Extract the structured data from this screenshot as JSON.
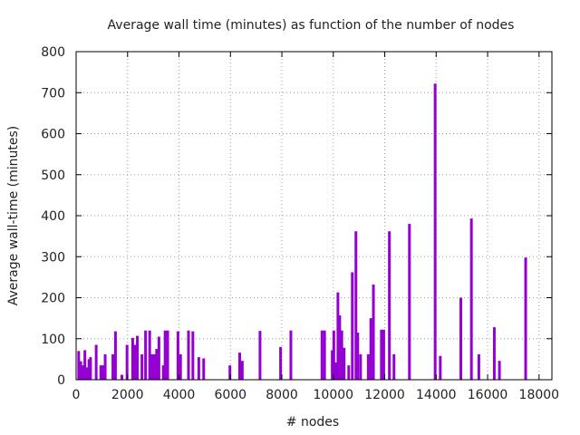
{
  "chart_data": {
    "type": "bar",
    "title": "Average wall time (minutes) as function of the number of nodes",
    "xlabel": "# nodes",
    "ylabel": "Average wall-time (minutes)",
    "xlim": [
      0,
      18500
    ],
    "ylim": [
      0,
      800
    ],
    "xticks": [
      0,
      2000,
      4000,
      6000,
      8000,
      10000,
      12000,
      14000,
      16000,
      18000
    ],
    "yticks": [
      0,
      100,
      200,
      300,
      400,
      500,
      600,
      700,
      800
    ],
    "grid": true,
    "bar_color": "#9400d3",
    "points": [
      {
        "x": 100,
        "y": 70
      },
      {
        "x": 180,
        "y": 45
      },
      {
        "x": 260,
        "y": 35
      },
      {
        "x": 340,
        "y": 72
      },
      {
        "x": 420,
        "y": 30
      },
      {
        "x": 500,
        "y": 50
      },
      {
        "x": 560,
        "y": 55
      },
      {
        "x": 780,
        "y": 85
      },
      {
        "x": 960,
        "y": 35
      },
      {
        "x": 1040,
        "y": 35
      },
      {
        "x": 1130,
        "y": 62
      },
      {
        "x": 1430,
        "y": 62
      },
      {
        "x": 1530,
        "y": 118
      },
      {
        "x": 1780,
        "y": 12
      },
      {
        "x": 1980,
        "y": 85
      },
      {
        "x": 2200,
        "y": 102
      },
      {
        "x": 2290,
        "y": 85
      },
      {
        "x": 2380,
        "y": 107
      },
      {
        "x": 2560,
        "y": 62
      },
      {
        "x": 2700,
        "y": 120
      },
      {
        "x": 2860,
        "y": 120
      },
      {
        "x": 2960,
        "y": 62
      },
      {
        "x": 3050,
        "y": 62
      },
      {
        "x": 3130,
        "y": 75
      },
      {
        "x": 3220,
        "y": 105
      },
      {
        "x": 3390,
        "y": 35
      },
      {
        "x": 3460,
        "y": 120
      },
      {
        "x": 3560,
        "y": 120
      },
      {
        "x": 3960,
        "y": 118
      },
      {
        "x": 4060,
        "y": 62
      },
      {
        "x": 4370,
        "y": 120
      },
      {
        "x": 4540,
        "y": 118
      },
      {
        "x": 4770,
        "y": 55
      },
      {
        "x": 4960,
        "y": 52
      },
      {
        "x": 5980,
        "y": 35
      },
      {
        "x": 6360,
        "y": 66
      },
      {
        "x": 6460,
        "y": 46
      },
      {
        "x": 7150,
        "y": 119
      },
      {
        "x": 7950,
        "y": 80
      },
      {
        "x": 8350,
        "y": 120
      },
      {
        "x": 9560,
        "y": 120
      },
      {
        "x": 9660,
        "y": 120
      },
      {
        "x": 9960,
        "y": 72
      },
      {
        "x": 10020,
        "y": 120
      },
      {
        "x": 10080,
        "y": 42
      },
      {
        "x": 10180,
        "y": 213
      },
      {
        "x": 10250,
        "y": 157
      },
      {
        "x": 10330,
        "y": 120
      },
      {
        "x": 10420,
        "y": 78
      },
      {
        "x": 10600,
        "y": 35
      },
      {
        "x": 10740,
        "y": 262
      },
      {
        "x": 10880,
        "y": 362
      },
      {
        "x": 10950,
        "y": 115
      },
      {
        "x": 11060,
        "y": 62
      },
      {
        "x": 11360,
        "y": 62
      },
      {
        "x": 11460,
        "y": 150
      },
      {
        "x": 11560,
        "y": 232
      },
      {
        "x": 11870,
        "y": 122
      },
      {
        "x": 11960,
        "y": 122
      },
      {
        "x": 12180,
        "y": 362
      },
      {
        "x": 12360,
        "y": 62
      },
      {
        "x": 12960,
        "y": 380
      },
      {
        "x": 13960,
        "y": 722
      },
      {
        "x": 14160,
        "y": 58
      },
      {
        "x": 14960,
        "y": 200
      },
      {
        "x": 15370,
        "y": 393
      },
      {
        "x": 15660,
        "y": 62
      },
      {
        "x": 16260,
        "y": 128
      },
      {
        "x": 16460,
        "y": 46
      },
      {
        "x": 17480,
        "y": 298
      }
    ]
  }
}
